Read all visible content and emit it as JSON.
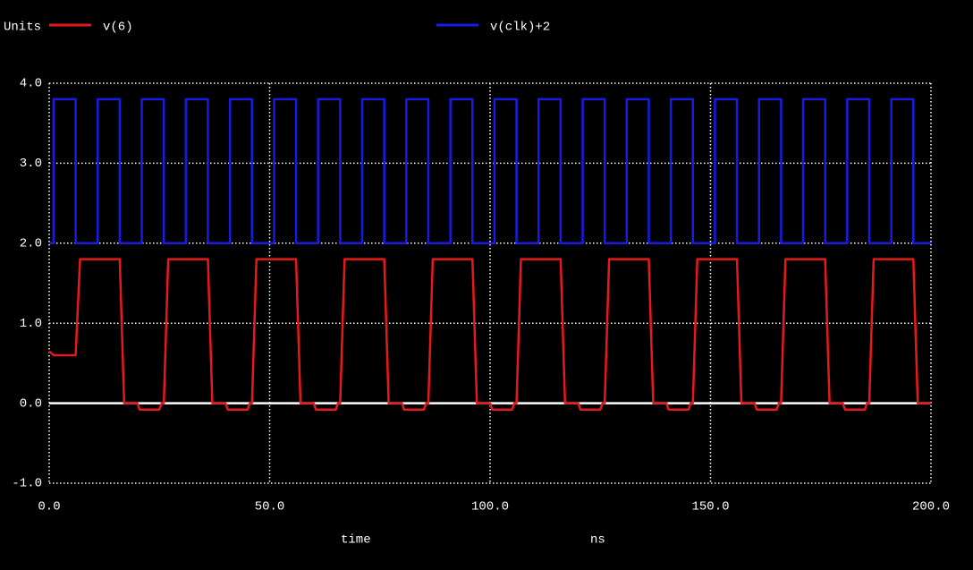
{
  "chart_data": {
    "type": "line",
    "y_axis_label": "Units",
    "x_axis_label": "time",
    "x_unit": "ns",
    "xlim": [
      0,
      200
    ],
    "xticks": [
      {
        "value": 0,
        "label": "0.0"
      },
      {
        "value": 50,
        "label": "50.0"
      },
      {
        "value": 100,
        "label": "100.0"
      },
      {
        "value": 150,
        "label": "150.0"
      },
      {
        "value": 200,
        "label": "200.0"
      }
    ],
    "ylim": [
      -1,
      4
    ],
    "yticks": [
      {
        "value": -1,
        "label": "-1.0"
      },
      {
        "value": 0,
        "label": "0.0"
      },
      {
        "value": 1,
        "label": "1.0"
      },
      {
        "value": 2,
        "label": "2.0"
      },
      {
        "value": 3,
        "label": "3.0"
      },
      {
        "value": 4,
        "label": "4.0"
      }
    ],
    "grid": true,
    "series": [
      {
        "name": "v(6)",
        "color": "#e8191a",
        "x": [
          0,
          1,
          6,
          7,
          16,
          17,
          20,
          20.5,
          25,
          25.5,
          26,
          27,
          36,
          37,
          40,
          40.5,
          45,
          45.5,
          46,
          47,
          56,
          57,
          60,
          60.5,
          65,
          65.5,
          66,
          67,
          76,
          77,
          80,
          80.5,
          85,
          85.5,
          86,
          87,
          96,
          97,
          100,
          100.5,
          105,
          105.5,
          106,
          107,
          116,
          117,
          120,
          120.5,
          125,
          125.5,
          126,
          127,
          136,
          137,
          140,
          140.5,
          145,
          145.5,
          146,
          147,
          156,
          157,
          160,
          160.5,
          165,
          165.5,
          166,
          167,
          176,
          177,
          180,
          180.5,
          185,
          185.5,
          186,
          187,
          196,
          197,
          200
        ],
        "values": [
          0.65,
          0.6,
          0.6,
          1.8,
          1.8,
          0,
          0,
          -0.08,
          -0.08,
          0,
          0,
          1.8,
          1.8,
          0,
          0,
          -0.08,
          -0.08,
          0,
          0,
          1.8,
          1.8,
          0,
          0,
          -0.08,
          -0.08,
          0,
          0,
          1.8,
          1.8,
          0,
          0,
          -0.08,
          -0.08,
          0,
          0,
          1.8,
          1.8,
          0,
          0,
          -0.08,
          -0.08,
          0,
          0,
          1.8,
          1.8,
          0,
          0,
          -0.08,
          -0.08,
          0,
          0,
          1.8,
          1.8,
          0,
          0,
          -0.08,
          -0.08,
          0,
          0,
          1.8,
          1.8,
          0,
          0,
          -0.08,
          -0.08,
          0,
          0,
          1.8,
          1.8,
          0,
          0,
          -0.08,
          -0.08,
          0,
          0,
          1.8,
          1.8,
          0,
          0
        ]
      },
      {
        "name": "v(clk)+2",
        "color": "#1a1ae6",
        "x": [
          0,
          1,
          1,
          6,
          6,
          11,
          11,
          16,
          16,
          21,
          21,
          26,
          26,
          31,
          31,
          36,
          36,
          41,
          41,
          46,
          46,
          51,
          51,
          56,
          56,
          61,
          61,
          66,
          66,
          71,
          71,
          76,
          76,
          81,
          81,
          86,
          86,
          91,
          91,
          96,
          96,
          101,
          101,
          106,
          106,
          111,
          111,
          116,
          116,
          121,
          121,
          126,
          126,
          131,
          131,
          136,
          136,
          141,
          141,
          146,
          146,
          151,
          151,
          156,
          156,
          161,
          161,
          166,
          166,
          171,
          171,
          176,
          176,
          181,
          181,
          186,
          186,
          191,
          191,
          196,
          196,
          200
        ],
        "values": [
          2,
          2,
          3.8,
          3.8,
          2,
          2,
          3.8,
          3.8,
          2,
          2,
          3.8,
          3.8,
          2,
          2,
          3.8,
          3.8,
          2,
          2,
          3.8,
          3.8,
          2,
          2,
          3.8,
          3.8,
          2,
          2,
          3.8,
          3.8,
          2,
          2,
          3.8,
          3.8,
          2,
          2,
          3.8,
          3.8,
          2,
          2,
          3.8,
          3.8,
          2,
          2,
          3.8,
          3.8,
          2,
          2,
          3.8,
          3.8,
          2,
          2,
          3.8,
          3.8,
          2,
          2,
          3.8,
          3.8,
          2,
          2,
          3.8,
          3.8,
          2,
          2,
          3.8,
          3.8,
          2,
          2,
          3.8,
          3.8,
          2,
          2,
          3.8,
          3.8,
          2,
          2,
          3.8,
          3.8,
          2,
          2,
          3.8,
          3.8,
          2,
          2
        ]
      }
    ]
  }
}
